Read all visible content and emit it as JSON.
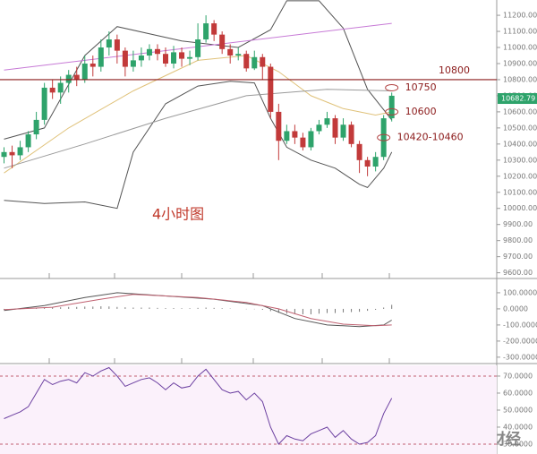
{
  "chart_data": [
    {
      "type": "candlestick",
      "annotation": "4小时图",
      "up_color": "#2ea36b",
      "down_color": "#c23a3a",
      "open": [
        10320,
        10350,
        10330,
        10380,
        10460,
        10550,
        10750,
        10720,
        10780,
        10830,
        10800,
        10900,
        10880,
        11000,
        11050,
        10980,
        10880,
        10920,
        10950,
        10990,
        10960,
        10900,
        10970,
        10930,
        10940,
        11050,
        11150,
        11080,
        10990,
        10950,
        10960,
        10870,
        10940,
        10880,
        10600,
        10420,
        10480,
        10440,
        10380,
        10480,
        10520,
        10560,
        10440,
        10520,
        10400,
        10300,
        10260,
        10320,
        10560
      ],
      "high": [
        10380,
        10390,
        10420,
        10480,
        10600,
        10780,
        10800,
        10820,
        10860,
        10880,
        10950,
        10950,
        11050,
        11100,
        11080,
        11000,
        10980,
        11000,
        11020,
        11020,
        11000,
        11010,
        11000,
        10980,
        11150,
        11200,
        11170,
        11100,
        11020,
        11000,
        10980,
        10980,
        10960,
        10900,
        10650,
        10520,
        10520,
        10470,
        10500,
        10550,
        10600,
        10580,
        10560,
        10540,
        10420,
        10320,
        10350,
        10580,
        10720
      ],
      "low": [
        10280,
        10250,
        10300,
        10350,
        10430,
        10520,
        10680,
        10650,
        10720,
        10760,
        10780,
        10820,
        10850,
        10950,
        10900,
        10820,
        10850,
        10880,
        10920,
        10920,
        10880,
        10870,
        10880,
        10890,
        10920,
        11030,
        11040,
        10960,
        10900,
        10920,
        10850,
        10860,
        10800,
        10560,
        10300,
        10400,
        10400,
        10360,
        10360,
        10460,
        10500,
        10400,
        10420,
        10380,
        10220,
        10200,
        10230,
        10300,
        10540
      ],
      "close": [
        10350,
        10330,
        10380,
        10460,
        10550,
        10750,
        10720,
        10780,
        10830,
        10800,
        10900,
        10880,
        11000,
        11050,
        10980,
        10880,
        10920,
        10950,
        10990,
        10960,
        10900,
        10970,
        10930,
        10940,
        11050,
        11150,
        11080,
        10990,
        10950,
        10960,
        10870,
        10940,
        10880,
        10600,
        10420,
        10480,
        10440,
        10380,
        10480,
        10520,
        10560,
        10440,
        10520,
        10400,
        10300,
        10260,
        10320,
        10560,
        10700
      ],
      "overlays": [
        {
          "color": "#555555",
          "x": [
            0,
            5,
            10,
            14,
            22,
            29,
            33,
            35,
            39,
            42,
            45,
            48
          ],
          "values": [
            10430,
            10500,
            10950,
            11130,
            11040,
            11000,
            11110,
            11290,
            11290,
            11120,
            10740,
            10550
          ]
        },
        {
          "color": "#555555",
          "x": [
            0,
            5,
            10,
            14,
            16,
            20,
            24,
            28,
            31,
            33,
            35,
            38,
            41,
            44,
            45,
            47,
            48
          ],
          "values": [
            10050,
            10030,
            10040,
            10000,
            10350,
            10650,
            10760,
            10790,
            10780,
            10560,
            10380,
            10300,
            10250,
            10150,
            10130,
            10250,
            10350
          ]
        },
        {
          "color": "#c77ad6",
          "x": [
            0,
            48
          ],
          "values": [
            10860,
            11150
          ]
        },
        {
          "color": "#e0c27a",
          "x": [
            0,
            8,
            16,
            24,
            30,
            34,
            38,
            42,
            46,
            48
          ],
          "values": [
            10220,
            10500,
            10730,
            10920,
            10950,
            10850,
            10700,
            10620,
            10580,
            10600
          ]
        },
        {
          "color": "#9a9a9a",
          "x": [
            0,
            10,
            20,
            30,
            40,
            48
          ],
          "values": [
            10250,
            10400,
            10560,
            10700,
            10740,
            10730
          ]
        }
      ],
      "hline": {
        "value": 10800,
        "label": "10800",
        "color": "#8b1a1a"
      },
      "markers": [
        {
          "x": 48,
          "value": 10750,
          "label": "10750"
        },
        {
          "x": 48,
          "value": 10600,
          "label": "10600"
        },
        {
          "x": 47,
          "low": 10420,
          "high": 10460,
          "label": "10420-10460"
        }
      ],
      "last_price": 10682.79,
      "xlim": [
        -0.5,
        61
      ],
      "ylim": [
        9570,
        11295
      ],
      "yticks": [
        {
          "value": 9600,
          "label": "9600.00"
        },
        {
          "value": 9700,
          "label": "9700.00"
        },
        {
          "value": 9800,
          "label": "9800.00"
        },
        {
          "value": 9900,
          "label": "9900.00"
        },
        {
          "value": 10000,
          "label": "10000.00"
        },
        {
          "value": 10100,
          "label": "10100.00"
        },
        {
          "value": 10200,
          "label": "10200.00"
        },
        {
          "value": 10300,
          "label": "10300.00"
        },
        {
          "value": 10400,
          "label": "10400.00"
        },
        {
          "value": 10500,
          "label": "10500.00"
        },
        {
          "value": 10600,
          "label": "10600.00"
        },
        {
          "value": 10700,
          "label": "10700.00"
        },
        {
          "value": 10800,
          "label": "10800.00"
        },
        {
          "value": 10900,
          "label": "10900.00"
        },
        {
          "value": 11000,
          "label": "11000.00"
        },
        {
          "value": 11100,
          "label": "11100.00"
        },
        {
          "value": 11200,
          "label": "11200.00"
        }
      ]
    },
    {
      "type": "macd",
      "series": [
        {
          "color": "#555555",
          "x": [
            0,
            5,
            10,
            14,
            20,
            26,
            32,
            36,
            40,
            44,
            47,
            48
          ],
          "values": [
            -10,
            20,
            70,
            100,
            80,
            60,
            20,
            -60,
            -100,
            -110,
            -100,
            -70
          ]
        },
        {
          "color": "#c06070",
          "x": [
            0,
            6,
            12,
            16,
            24,
            30,
            34,
            38,
            42,
            46,
            48
          ],
          "values": [
            -5,
            10,
            60,
            90,
            70,
            40,
            0,
            -60,
            -95,
            -105,
            -100
          ]
        }
      ],
      "bars": [
        -5,
        -3,
        -2,
        0,
        3,
        8,
        10,
        10,
        12,
        12,
        14,
        14,
        16,
        15,
        12,
        10,
        8,
        8,
        8,
        6,
        5,
        5,
        4,
        4,
        6,
        8,
        6,
        4,
        2,
        0,
        -2,
        -2,
        -6,
        -14,
        -24,
        -30,
        -32,
        -34,
        -34,
        -30,
        -26,
        -26,
        -22,
        -20,
        -18,
        -12,
        -6,
        8,
        25
      ],
      "ylim": [
        -334,
        183
      ],
      "yticks": [
        {
          "value": 100,
          "label": "100.0000"
        },
        {
          "value": 0,
          "label": "0.0000"
        },
        {
          "value": -100,
          "label": "-100.0000"
        },
        {
          "value": -200,
          "label": "-200.0000"
        },
        {
          "value": -300,
          "label": "-300.0000"
        }
      ]
    },
    {
      "type": "line",
      "background": "#fbf1fb",
      "series": [
        {
          "color": "#6b3fa0",
          "values": [
            45,
            47,
            49,
            52,
            60,
            68,
            65,
            67,
            68,
            66,
            72,
            70,
            73,
            75,
            70,
            64,
            66,
            68,
            69,
            66,
            62,
            66,
            63,
            64,
            70,
            74,
            68,
            62,
            60,
            61,
            56,
            60,
            55,
            40,
            30,
            35,
            33,
            32,
            36,
            38,
            40,
            34,
            38,
            33,
            30,
            31,
            35,
            48,
            57
          ]
        }
      ],
      "guide_lines": [
        70,
        30
      ],
      "ylim": [
        24.2,
        76.3
      ],
      "yticks": [
        {
          "value": 70,
          "label": "70.0000"
        },
        {
          "value": 60,
          "label": "60.0000"
        },
        {
          "value": 50,
          "label": "50.0000"
        },
        {
          "value": 40,
          "label": "40.0000"
        },
        {
          "value": 30,
          "label": "30.0000"
        }
      ]
    }
  ],
  "watermark": "金色财经"
}
